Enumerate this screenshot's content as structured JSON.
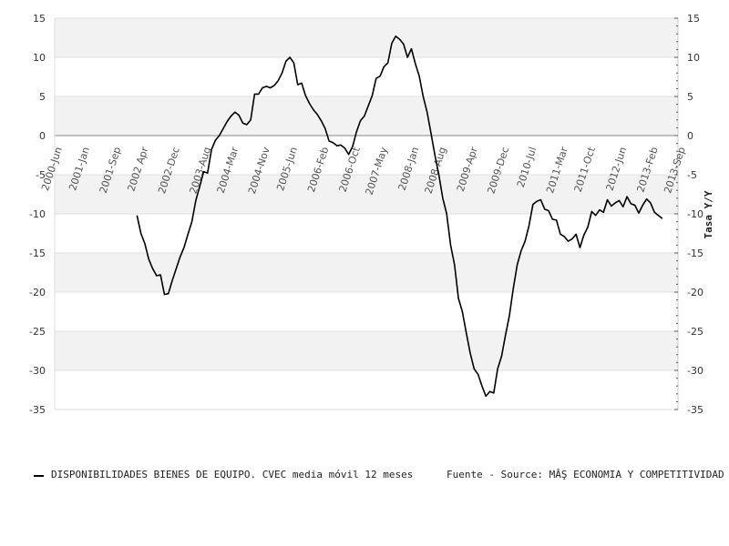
{
  "chart_data": {
    "type": "line",
    "title": "",
    "xlabel": "",
    "ylabel": "",
    "y2label": "Tasa Y/Y",
    "ylim": [
      -35,
      15
    ],
    "yticks": [
      15,
      10,
      5,
      0,
      -5,
      -10,
      -15,
      -20,
      -25,
      -30,
      -35
    ],
    "x_range": [
      "2000-06",
      "2013-09"
    ],
    "x_tick_labels": [
      "2000-Jun",
      "2001-Jan",
      "2001-Sep",
      "2002 Apr",
      "2002-Dec",
      "2003-Aug",
      "2004-Mar",
      "2004-Nov",
      "2005-Jun",
      "2006-Feb",
      "2006-Oct",
      "2007-May",
      "2008-Jan",
      "2008-Aug",
      "2009-Apr",
      "2009-Dec",
      "2010-Jul",
      "2011-Mar",
      "2011-Oct",
      "2012-Jun",
      "2013-Feb",
      "2013-Sep"
    ],
    "x_tick_dates": [
      "2000-06",
      "2001-01",
      "2001-09",
      "2002-04",
      "2002-12",
      "2003-08",
      "2004-03",
      "2004-11",
      "2005-06",
      "2006-02",
      "2006-10",
      "2007-05",
      "2008-01",
      "2008-08",
      "2009-04",
      "2009-12",
      "2010-07",
      "2011-03",
      "2011-10",
      "2012-06",
      "2013-02",
      "2013-09"
    ],
    "grid": true,
    "band_colors": [
      "#f2f2f2",
      "#ffffff"
    ],
    "zero_line_color": "#888888",
    "series": [
      {
        "name": "DISPONIBILIDADES BIENES DE EQUIPO. CVEC media móvil 12 meses",
        "color": "#000000",
        "points": [
          [
            "2002-03",
            -10.2
          ],
          [
            "2002-04",
            -12.5
          ],
          [
            "2002-05",
            -13.8
          ],
          [
            "2002-06",
            -15.8
          ],
          [
            "2002-07",
            -17.0
          ],
          [
            "2002-08",
            -17.9
          ],
          [
            "2002-09",
            -17.8
          ],
          [
            "2002-10",
            -20.3
          ],
          [
            "2002-11",
            -20.2
          ],
          [
            "2002-12",
            -18.5
          ],
          [
            "2003-01",
            -17.0
          ],
          [
            "2003-02",
            -15.5
          ],
          [
            "2003-03",
            -14.3
          ],
          [
            "2003-04",
            -12.6
          ],
          [
            "2003-05",
            -11.0
          ],
          [
            "2003-06",
            -8.3
          ],
          [
            "2003-07",
            -6.5
          ],
          [
            "2003-08",
            -4.6
          ],
          [
            "2003-09",
            -4.8
          ],
          [
            "2003-10",
            -1.8
          ],
          [
            "2003-11",
            -0.6
          ],
          [
            "2003-12",
            0.0
          ],
          [
            "2004-01",
            0.9
          ],
          [
            "2004-02",
            1.8
          ],
          [
            "2004-03",
            2.5
          ],
          [
            "2004-04",
            3.0
          ],
          [
            "2004-05",
            2.6
          ],
          [
            "2004-06",
            1.6
          ],
          [
            "2004-07",
            1.4
          ],
          [
            "2004-08",
            2.0
          ],
          [
            "2004-09",
            5.3
          ],
          [
            "2004-10",
            5.3
          ],
          [
            "2004-11",
            6.1
          ],
          [
            "2004-12",
            6.3
          ],
          [
            "2005-01",
            6.1
          ],
          [
            "2005-02",
            6.4
          ],
          [
            "2005-03",
            7.0
          ],
          [
            "2005-04",
            8.0
          ],
          [
            "2005-05",
            9.5
          ],
          [
            "2005-06",
            10.0
          ],
          [
            "2005-07",
            9.3
          ],
          [
            "2005-08",
            6.5
          ],
          [
            "2005-09",
            6.7
          ],
          [
            "2005-10",
            5.1
          ],
          [
            "2005-11",
            4.1
          ],
          [
            "2005-12",
            3.3
          ],
          [
            "2006-01",
            2.7
          ],
          [
            "2006-02",
            1.9
          ],
          [
            "2006-03",
            0.9
          ],
          [
            "2006-04",
            -0.7
          ],
          [
            "2006-05",
            -0.9
          ],
          [
            "2006-06",
            -1.3
          ],
          [
            "2006-07",
            -1.2
          ],
          [
            "2006-08",
            -1.6
          ],
          [
            "2006-09",
            -2.4
          ],
          [
            "2006-10",
            -1.4
          ],
          [
            "2006-11",
            0.5
          ],
          [
            "2006-12",
            1.9
          ],
          [
            "2007-01",
            2.5
          ],
          [
            "2007-02",
            3.8
          ],
          [
            "2007-03",
            5.1
          ],
          [
            "2007-04",
            7.3
          ],
          [
            "2007-05",
            7.6
          ],
          [
            "2007-06",
            8.8
          ],
          [
            "2007-07",
            9.3
          ],
          [
            "2007-08",
            11.8
          ],
          [
            "2007-09",
            12.7
          ],
          [
            "2007-10",
            12.3
          ],
          [
            "2007-11",
            11.7
          ],
          [
            "2007-12",
            10.0
          ],
          [
            "2008-01",
            11.1
          ],
          [
            "2008-02",
            9.2
          ],
          [
            "2008-03",
            7.6
          ],
          [
            "2008-04",
            5.0
          ],
          [
            "2008-05",
            3.0
          ],
          [
            "2008-06",
            0.3
          ],
          [
            "2008-07",
            -2.5
          ],
          [
            "2008-08",
            -5.0
          ],
          [
            "2008-09",
            -8.0
          ],
          [
            "2008-10",
            -10.0
          ],
          [
            "2008-11",
            -14.0
          ],
          [
            "2008-12",
            -16.5
          ],
          [
            "2009-01",
            -20.8
          ],
          [
            "2009-02",
            -22.5
          ],
          [
            "2009-03",
            -25.2
          ],
          [
            "2009-04",
            -27.8
          ],
          [
            "2009-05",
            -29.8
          ],
          [
            "2009-06",
            -30.5
          ],
          [
            "2009-07",
            -32.0
          ],
          [
            "2009-08",
            -33.3
          ],
          [
            "2009-09",
            -32.7
          ],
          [
            "2009-10",
            -32.9
          ],
          [
            "2009-11",
            -29.8
          ],
          [
            "2009-12",
            -28.2
          ],
          [
            "2010-01",
            -25.5
          ],
          [
            "2010-02",
            -23.0
          ],
          [
            "2010-03",
            -19.5
          ],
          [
            "2010-04",
            -16.5
          ],
          [
            "2010-05",
            -14.7
          ],
          [
            "2010-06",
            -13.5
          ],
          [
            "2010-07",
            -11.5
          ],
          [
            "2010-08",
            -8.8
          ],
          [
            "2010-09",
            -8.4
          ],
          [
            "2010-10",
            -8.2
          ],
          [
            "2010-11",
            -9.4
          ],
          [
            "2010-12",
            -9.6
          ],
          [
            "2011-01",
            -10.7
          ],
          [
            "2011-02",
            -10.8
          ],
          [
            "2011-03",
            -12.6
          ],
          [
            "2011-04",
            -12.9
          ],
          [
            "2011-05",
            -13.5
          ],
          [
            "2011-06",
            -13.2
          ],
          [
            "2011-07",
            -12.6
          ],
          [
            "2011-08",
            -14.3
          ],
          [
            "2011-09",
            -12.7
          ],
          [
            "2011-10",
            -11.7
          ],
          [
            "2011-11",
            -9.7
          ],
          [
            "2011-12",
            -10.2
          ],
          [
            "2012-01",
            -9.5
          ],
          [
            "2012-02",
            -9.8
          ],
          [
            "2012-03",
            -8.2
          ],
          [
            "2012-04",
            -9.0
          ],
          [
            "2012-05",
            -8.6
          ],
          [
            "2012-06",
            -8.3
          ],
          [
            "2012-07",
            -9.1
          ],
          [
            "2012-08",
            -7.8
          ],
          [
            "2012-09",
            -8.7
          ],
          [
            "2012-10",
            -8.9
          ],
          [
            "2012-11",
            -9.9
          ],
          [
            "2012-12",
            -8.9
          ],
          [
            "2013-01",
            -8.1
          ],
          [
            "2013-02",
            -8.6
          ],
          [
            "2013-03",
            -9.8
          ],
          [
            "2013-04",
            -10.2
          ],
          [
            "2013-05",
            -10.6
          ]
        ]
      }
    ],
    "legend": {
      "series_label": "DISPONIBILIDADES BIENES DE EQUIPO. CVEC media móvil 12 meses",
      "source_label": "Fuente - Source: MÂŞ ECONOMIA Y COMPETITIVIDAD",
      "placement": "bottom-left"
    }
  }
}
